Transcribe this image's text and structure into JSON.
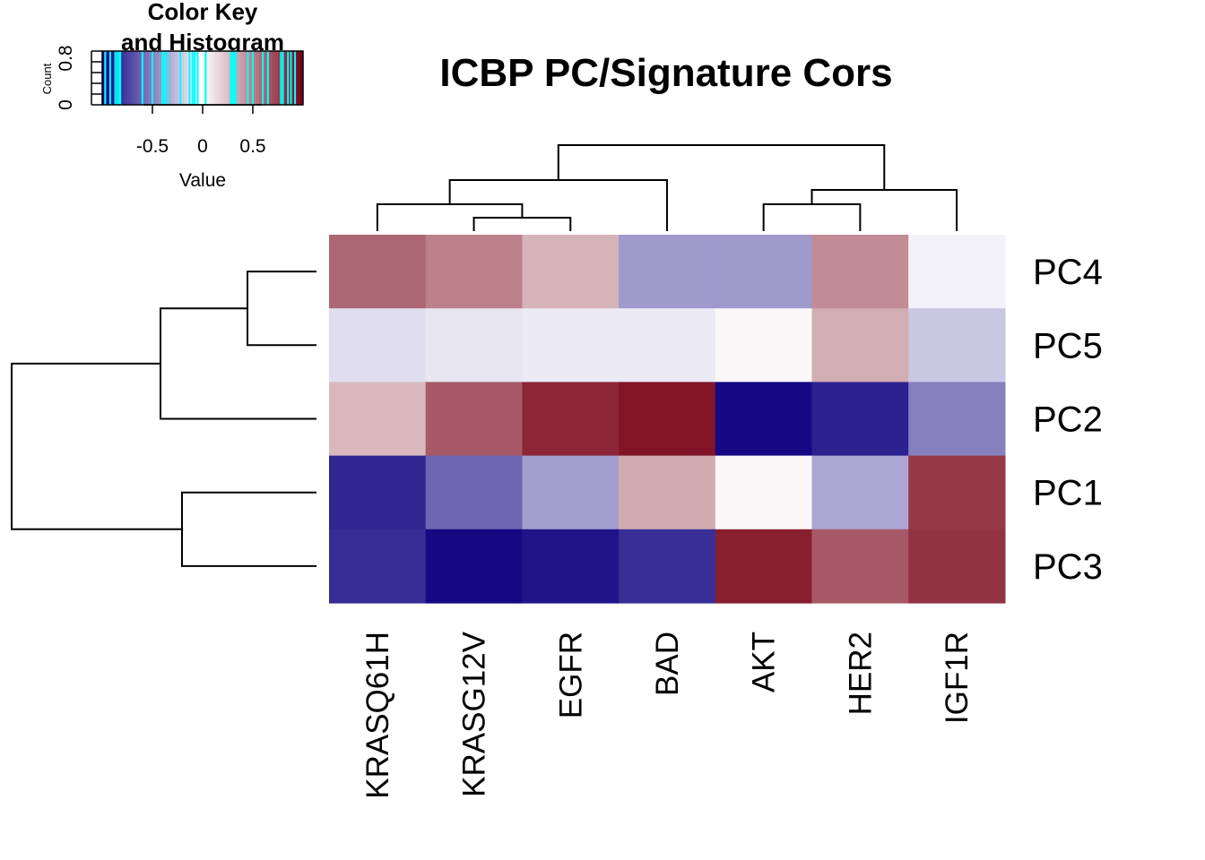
{
  "chart_data": [
    {
      "type": "heatmap",
      "title": "ICBP PC/Signature Cors",
      "columns": [
        "KRASQ61H",
        "KRASG12V",
        "EGFR",
        "BAD",
        "AKT",
        "HER2",
        "IGF1R"
      ],
      "rows": [
        "PC4",
        "PC5",
        "PC2",
        "PC1",
        "PC3"
      ],
      "values": [
        [
          0.6,
          0.5,
          0.3,
          -0.4,
          -0.4,
          0.45,
          -0.05
        ],
        [
          -0.13,
          -0.1,
          -0.08,
          -0.08,
          0.03,
          0.32,
          -0.22
        ],
        [
          0.28,
          0.65,
          0.85,
          0.92,
          -0.97,
          -0.87,
          -0.5
        ],
        [
          -0.85,
          -0.6,
          -0.38,
          0.33,
          0.03,
          -0.35,
          0.78
        ],
        [
          -0.83,
          -0.97,
          -0.92,
          -0.82,
          0.88,
          0.65,
          0.8
        ]
      ],
      "color_scale": {
        "low": "#0e007f",
        "mid": "#ffffff",
        "high": "#770015"
      },
      "row_dendrogram": true,
      "column_dendrogram": true
    },
    {
      "type": "bar",
      "title": "Color Key\nand Histogram",
      "xlabel": "Value",
      "ylabel": "Count",
      "x_ticks": [
        "-0.5",
        "0",
        "0.5"
      ],
      "y_ticks": [
        "0",
        "0.8"
      ],
      "xlim": [
        -1,
        1
      ],
      "ylim": [
        0,
        1
      ],
      "histogram_line_color": "#00ffff"
    }
  ]
}
